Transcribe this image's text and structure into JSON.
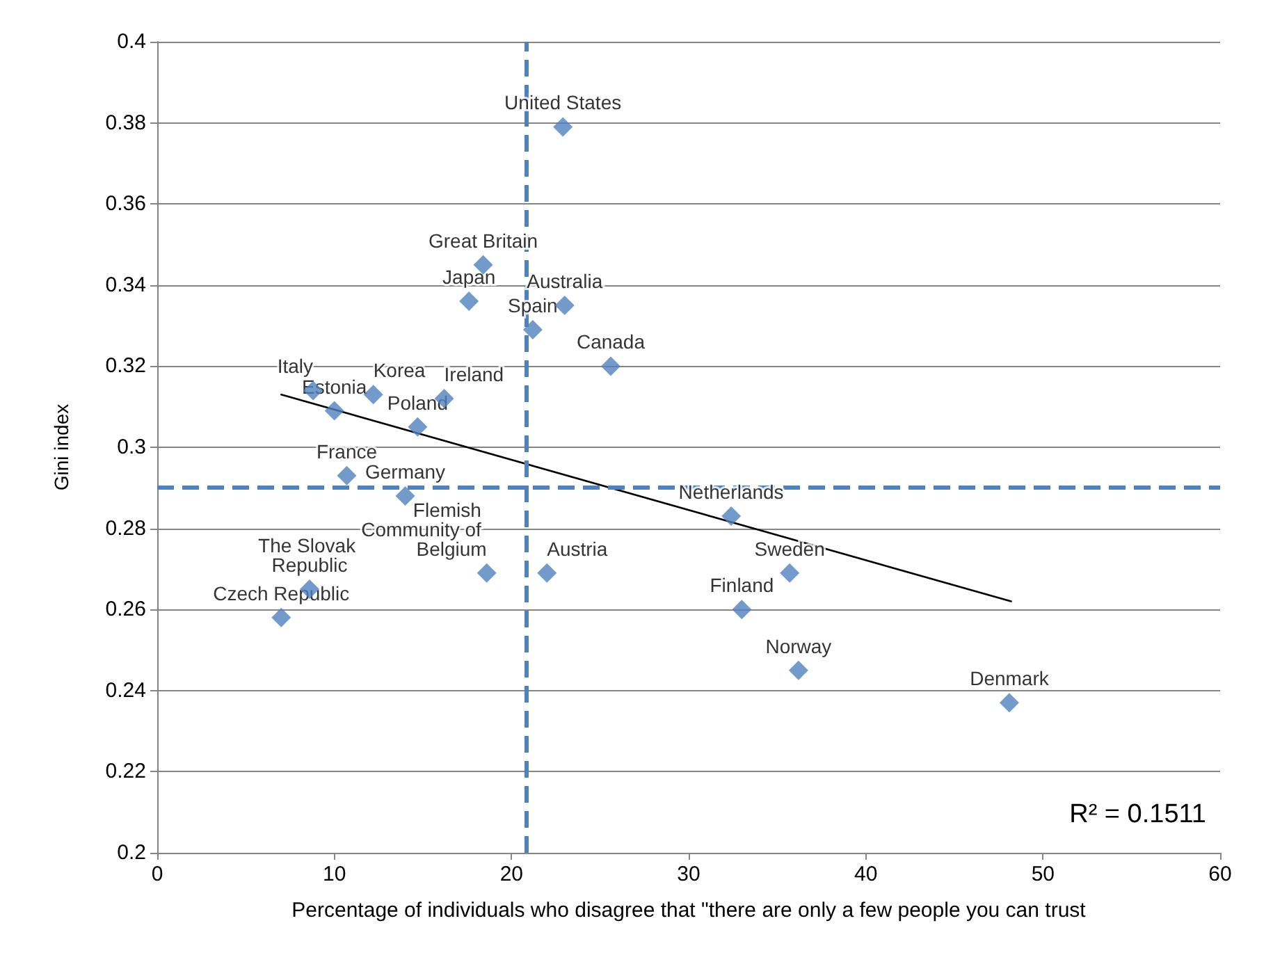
{
  "chart_data": {
    "type": "scatter",
    "xlabel": "Percentage of individuals who disagree that \"there are only a few people you can trust",
    "ylabel": "Gini index",
    "xlim": [
      0,
      60
    ],
    "xticks": [
      0,
      10,
      20,
      30,
      40,
      50,
      60
    ],
    "ylim": [
      0.2,
      0.4
    ],
    "yticks": [
      0.2,
      0.22,
      0.24,
      0.26,
      0.28,
      0.3,
      0.32,
      0.34,
      0.36,
      0.38,
      0.4
    ],
    "grid": "y",
    "series": [
      {
        "marker": "diamond",
        "color": "#4f81bd",
        "x": [
          22.9,
          18.4,
          17.6,
          23.0,
          21.2,
          25.6,
          8.8,
          10.0,
          12.2,
          16.2,
          14.7,
          10.7,
          14.0,
          18.6,
          22.0,
          8.6,
          7.0,
          32.4,
          35.7,
          33.0,
          36.2,
          48.1
        ],
        "values": [
          0.379,
          0.345,
          0.336,
          0.335,
          0.329,
          0.32,
          0.314,
          0.309,
          0.313,
          0.312,
          0.305,
          0.293,
          0.288,
          0.269,
          0.269,
          0.265,
          0.258,
          0.283,
          0.269,
          0.26,
          0.245,
          0.237
        ]
      },
      {
        "type": "line",
        "marker": "none",
        "color": "#000000",
        "x": [
          7.0,
          48.2
        ],
        "values": [
          0.313,
          0.262
        ]
      }
    ],
    "ref_lines": [
      {
        "axis": "x",
        "value": 20.8,
        "color": "#4f81bd",
        "line_style": "dashed"
      },
      {
        "axis": "y",
        "value": 0.29,
        "color": "#4f81bd",
        "line_style": "dashed"
      }
    ],
    "annotations": [
      {
        "text": "United States",
        "x": 22.9,
        "y": 0.379
      },
      {
        "text": "Great Britain",
        "x": 18.4,
        "y": 0.345
      },
      {
        "text": "Japan",
        "x": 17.6,
        "y": 0.336
      },
      {
        "text": "Australia",
        "x": 23.0,
        "y": 0.335
      },
      {
        "text": "Spain",
        "x": 21.2,
        "y": 0.329
      },
      {
        "text": "Canada",
        "x": 25.6,
        "y": 0.32
      },
      {
        "text": "Italy",
        "x": 8.8,
        "y": 0.314
      },
      {
        "text": "Estonia",
        "x": 10.0,
        "y": 0.309
      },
      {
        "text": "Korea",
        "x": 12.2,
        "y": 0.313
      },
      {
        "text": "Ireland",
        "x": 16.2,
        "y": 0.312
      },
      {
        "text": "Poland",
        "x": 14.7,
        "y": 0.305
      },
      {
        "text": "France",
        "x": 10.7,
        "y": 0.293
      },
      {
        "text": "Germany",
        "x": 14.0,
        "y": 0.288
      },
      {
        "text": "Flemish Community of Belgium",
        "x": 18.6,
        "y": 0.269
      },
      {
        "text": "Austria",
        "x": 22.0,
        "y": 0.269
      },
      {
        "text": "The Slovak Republic",
        "x": 8.6,
        "y": 0.265
      },
      {
        "text": "Czech Republic",
        "x": 7.0,
        "y": 0.258
      },
      {
        "text": "Netherlands",
        "x": 32.4,
        "y": 0.283
      },
      {
        "text": "Sweden",
        "x": 35.7,
        "y": 0.269
      },
      {
        "text": "Finland",
        "x": 33.0,
        "y": 0.26
      },
      {
        "text": "Norway",
        "x": 36.2,
        "y": 0.245
      },
      {
        "text": "Denmark",
        "x": 48.1,
        "y": 0.237
      },
      "R² = 0.1511"
    ]
  }
}
